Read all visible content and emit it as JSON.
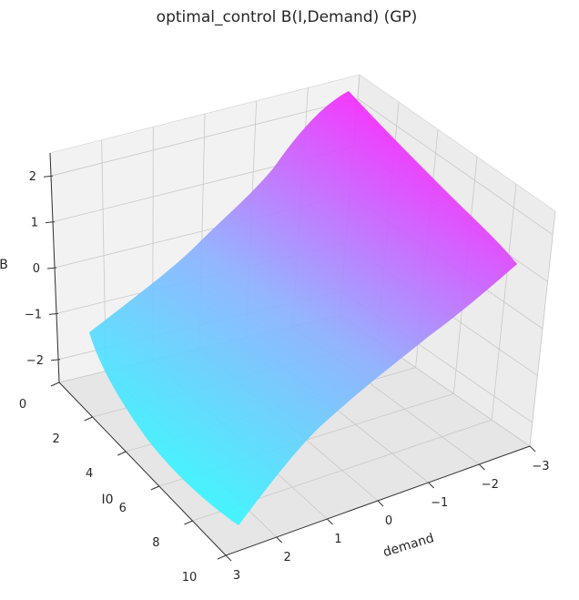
{
  "chart_data": {
    "type": "surface",
    "title": "optimal_control B(I,Demand) (GP)",
    "xlabel": "demand",
    "ylabel": "I0",
    "zlabel": "B",
    "xlim": [
      3,
      -3
    ],
    "ylim": [
      0,
      10
    ],
    "zlim": [
      -2.5,
      2.5
    ],
    "x_ticks": [
      "3",
      "2",
      "1",
      "0",
      "−1",
      "−2",
      "−3"
    ],
    "y_ticks": [
      "0",
      "2",
      "4",
      "6",
      "8",
      "10"
    ],
    "z_ticks": [
      "−2",
      "−1",
      "0",
      "1",
      "2"
    ],
    "grid": true,
    "colormap": "cool",
    "corner_values": {
      "demand_3_I0_10": -2.0,
      "demand_-3_I0_10": 0.05,
      "demand_-3_I0_0": 2.1,
      "demand_3_I0_0": -1.3
    },
    "edge_profiles": {
      "I0_0_edge": {
        "demand": [
          3,
          1.5,
          0,
          -1.5,
          -3
        ],
        "B": [
          -1.3,
          -0.7,
          0.2,
          1.7,
          2.1
        ]
      },
      "I0_10_edge": {
        "demand": [
          3,
          1.5,
          0,
          -1.5,
          -3
        ],
        "B": [
          -2.0,
          -1.7,
          -1.2,
          -0.5,
          0.05
        ]
      },
      "demand_3_edge": {
        "I0": [
          0,
          2.5,
          5,
          7.5,
          10
        ],
        "B": [
          -1.3,
          -1.5,
          -1.7,
          -1.85,
          -2.0
        ]
      },
      "demand_-3_edge": {
        "I0": [
          0,
          2.5,
          5,
          7.5,
          10
        ],
        "B": [
          2.1,
          1.7,
          1.25,
          0.7,
          0.05
        ]
      }
    }
  }
}
